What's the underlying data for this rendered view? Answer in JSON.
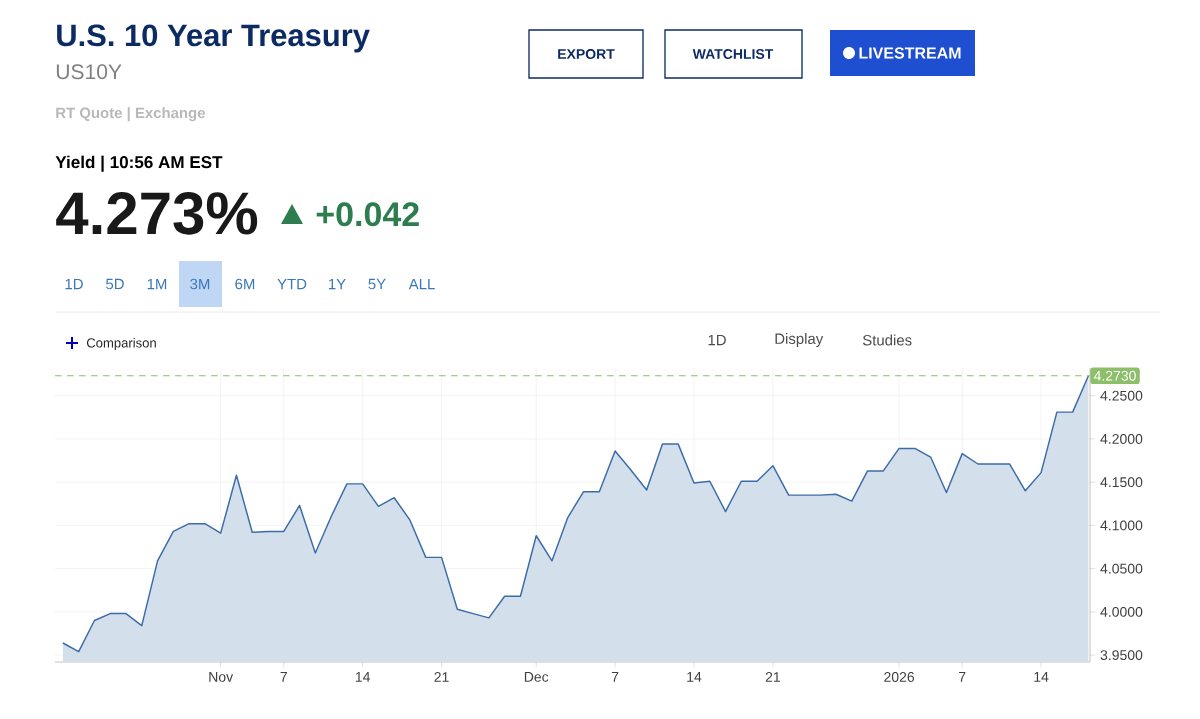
{
  "chart_data": {
    "type": "area",
    "title": "U.S. 10 Year Treasury",
    "subtitle": "US10Y",
    "annotations": [
      "RT Quote | Exchange",
      "Yield | 10:56 AM EST",
      "4.273%",
      "+0.042",
      "EXPORT",
      "WATCHLIST",
      "LIVESTREAM",
      "1D",
      "5D",
      "1M",
      "3M",
      "6M",
      "YTD",
      "1Y",
      "5Y",
      "ALL",
      "Comparison",
      "1D",
      "Display",
      "Studies"
    ],
    "categories": [
      null,
      null,
      null,
      null,
      null,
      null,
      null,
      null,
      null,
      null,
      "Nov",
      null,
      null,
      null,
      "7",
      null,
      null,
      null,
      null,
      "14",
      null,
      null,
      null,
      null,
      "21",
      null,
      null,
      null,
      null,
      null,
      "Dec",
      null,
      null,
      null,
      null,
      "7",
      null,
      null,
      null,
      null,
      "14",
      null,
      null,
      null,
      null,
      "21",
      null,
      null,
      null,
      null,
      null,
      null,
      null,
      "2026",
      null,
      null,
      null,
      "7",
      null,
      null,
      null,
      null,
      "14",
      null,
      null,
      null
    ],
    "values": [
      3.964,
      3.954,
      3.99,
      3.998,
      3.998,
      3.984,
      4.059,
      4.093,
      4.102,
      4.102,
      4.091,
      4.158,
      4.092,
      4.093,
      4.093,
      4.123,
      4.068,
      4.11,
      4.148,
      4.148,
      4.122,
      4.132,
      4.106,
      4.063,
      4.063,
      4.003,
      3.998,
      3.993,
      4.018,
      4.018,
      4.088,
      4.059,
      4.109,
      4.139,
      4.139,
      4.186,
      4.164,
      4.141,
      4.194,
      4.194,
      4.149,
      4.151,
      4.116,
      4.151,
      4.151,
      4.169,
      4.135,
      4.135,
      4.135,
      4.136,
      4.128,
      4.163,
      4.163,
      4.189,
      4.189,
      4.179,
      4.138,
      4.183,
      4.171,
      4.171,
      4.171,
      4.14,
      4.161,
      4.231,
      4.231,
      4.273
    ],
    "color": "#3b6ca8",
    "ylim": [
      3.942,
      4.282
    ],
    "yticks": [
      {
        "value": 3.95,
        "label": "3.9500"
      },
      {
        "value": 4.0,
        "label": "4.0000"
      },
      {
        "value": 4.05,
        "label": "4.0500"
      },
      {
        "value": 4.1,
        "label": "4.1000"
      },
      {
        "value": 4.15,
        "label": "4.1500"
      },
      {
        "value": 4.2,
        "label": "4.2000"
      },
      {
        "value": 4.25,
        "label": "4.2500"
      }
    ],
    "ref_lines": [
      {
        "axis": "y",
        "value": 4.273,
        "label": "4.2730",
        "color": "#8dbf6a",
        "line_style": "dashed"
      }
    ],
    "grid": true
  }
}
